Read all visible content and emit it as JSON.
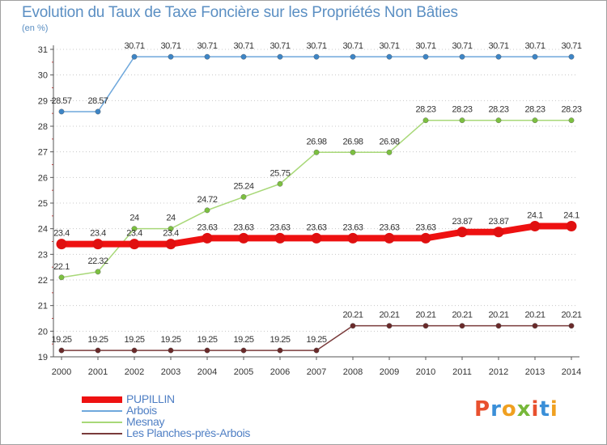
{
  "title": "Evolution du Taux de Taxe Foncière sur les Propriétés Non Bâties",
  "unit_label": "(en %)",
  "logo": {
    "text": "Proxiti",
    "colors": [
      "#e8502e",
      "#3a8fd8",
      "#f0a020",
      "#77b83a",
      "#e8502e",
      "#3a8fd8",
      "#f0a020"
    ]
  },
  "chart_data": {
    "type": "line",
    "x": [
      "2000",
      "2001",
      "2002",
      "2003",
      "2004",
      "2005",
      "2006",
      "2007",
      "2008",
      "2009",
      "2010",
      "2011",
      "2012",
      "2013",
      "2014"
    ],
    "ylim": [
      19,
      31
    ],
    "yticks": [
      "19",
      "20",
      "21",
      "22",
      "23",
      "24",
      "25",
      "26",
      "27",
      "28",
      "29",
      "30",
      "31"
    ],
    "grid": "horizontal dotted",
    "legend_position": "bottom-left",
    "series": [
      {
        "name": "PUPILLIN",
        "color": "#ee1111",
        "marker": "#e01010",
        "thick": true,
        "values": [
          23.4,
          23.4,
          23.4,
          23.4,
          23.63,
          23.63,
          23.63,
          23.63,
          23.63,
          23.63,
          23.63,
          23.87,
          23.87,
          24.1,
          24.1
        ],
        "labels": [
          "23.4",
          "23.4",
          "23.4",
          "23.4",
          "23.63",
          "23.63",
          "23.63",
          "23.63",
          "23.63",
          "23.63",
          "23.63",
          "23.87",
          "23.87",
          "24.1",
          "24.1"
        ]
      },
      {
        "name": "Arbois",
        "color": "#6fa8dc",
        "marker": "#3d85c6",
        "thick": false,
        "values": [
          28.57,
          28.57,
          30.71,
          30.71,
          30.71,
          30.71,
          30.71,
          30.71,
          30.71,
          30.71,
          30.71,
          30.71,
          30.71,
          30.71,
          30.71
        ],
        "labels": [
          "28.57",
          "28.57",
          "30.71",
          "30.71",
          "30.71",
          "30.71",
          "30.71",
          "30.71",
          "30.71",
          "30.71",
          "30.71",
          "30.71",
          "30.71",
          "30.71",
          "30.71"
        ]
      },
      {
        "name": "Mesnay",
        "color": "#a8d878",
        "marker": "#7cc040",
        "thick": false,
        "values": [
          22.1,
          22.32,
          24,
          24,
          24.72,
          25.24,
          25.75,
          26.98,
          26.98,
          26.98,
          28.23,
          28.23,
          28.23,
          28.23,
          28.23
        ],
        "labels": [
          "22.1",
          "22.32",
          "24",
          "24",
          "24.72",
          "25.24",
          "25.75",
          "26.98",
          "26.98",
          "26.98",
          "28.23",
          "28.23",
          "28.23",
          "28.23",
          "28.23"
        ]
      },
      {
        "name": "Les Planches-près-Arbois",
        "color": "#7a3b3b",
        "marker": "#6a2a2a",
        "thick": false,
        "values": [
          19.25,
          19.25,
          19.25,
          19.25,
          19.25,
          19.25,
          19.25,
          19.25,
          20.21,
          20.21,
          20.21,
          20.21,
          20.21,
          20.21,
          20.21
        ],
        "labels": [
          "19.25",
          "19.25",
          "19.25",
          "19.25",
          "19.25",
          "19.25",
          "19.25",
          "19.25",
          "20.21",
          "20.21",
          "20.21",
          "20.21",
          "20.21",
          "20.21",
          "20.21"
        ]
      }
    ]
  }
}
